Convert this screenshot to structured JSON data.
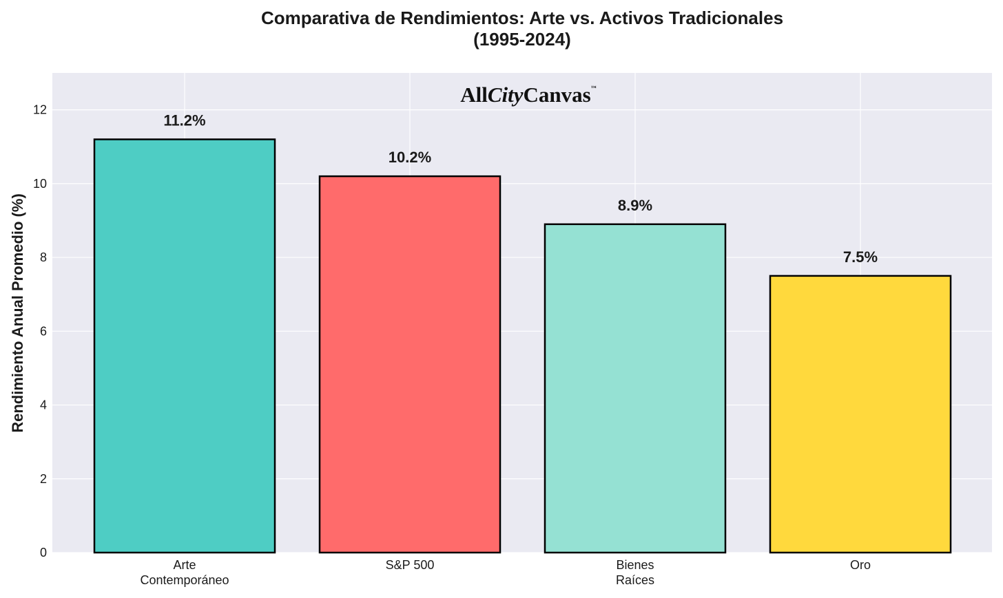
{
  "chart_data": {
    "type": "bar",
    "title": "Comparativa de Rendimientos: Arte vs. Activos Tradicionales",
    "subtitle": "(1995-2024)",
    "xlabel": "",
    "ylabel": "Rendimiento Anual Promedio (%)",
    "ylim": [
      0,
      13
    ],
    "yticks": [
      0,
      2,
      4,
      6,
      8,
      10,
      12
    ],
    "grid": true,
    "categories": [
      [
        "Arte",
        "Contemporáneo"
      ],
      [
        "S&P 500"
      ],
      [
        "Bienes",
        "Raíces"
      ],
      [
        "Oro"
      ]
    ],
    "values": [
      11.2,
      10.2,
      8.9,
      7.5
    ],
    "value_labels": [
      "11.2%",
      "10.2%",
      "8.9%",
      "7.5%"
    ],
    "colors": [
      "#4ECDC4",
      "#FF6B6B",
      "#95E1D3",
      "#FFD93D"
    ]
  },
  "watermark": {
    "part1": "All",
    "part2": "City",
    "part3": "Canvas",
    "mark": "™"
  },
  "theme": {
    "plot_bg": "#EAEAF2",
    "grid_color": "#ffffff",
    "edge_color": "#000000"
  }
}
